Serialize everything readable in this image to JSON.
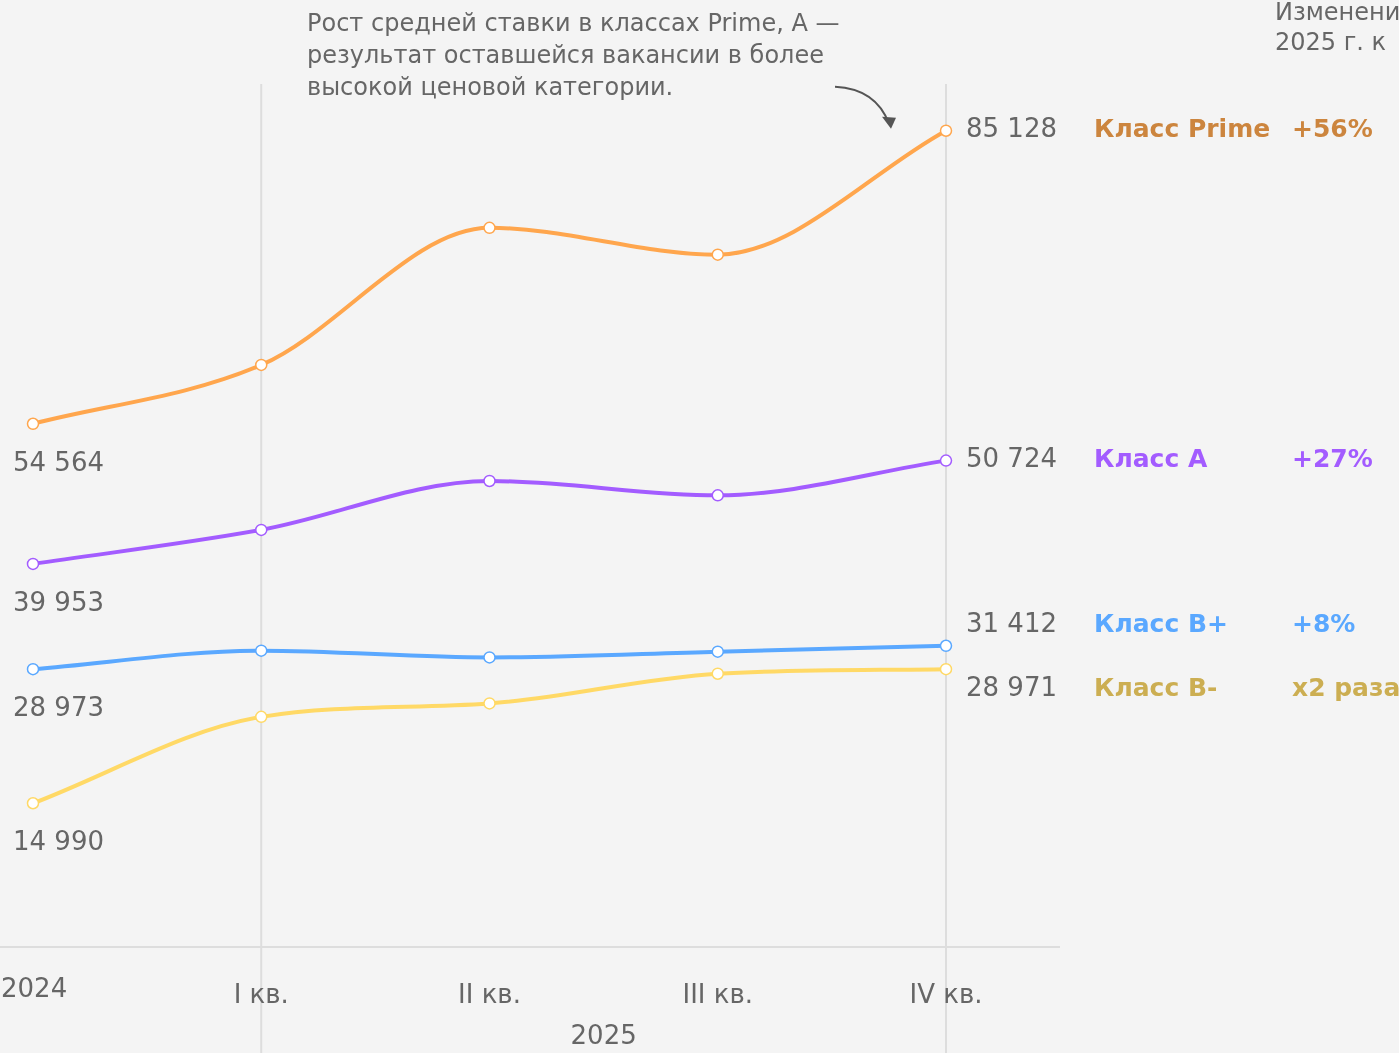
{
  "chart_data": {
    "type": "line",
    "categories": [
      "2024",
      "I кв.",
      "II кв.",
      "III кв.",
      "IV кв."
    ],
    "xlabel": "2025",
    "series": [
      {
        "name": "Класс Prime",
        "color": "#ffa64d",
        "values": [
          54564,
          60700,
          75000,
          72200,
          85128
        ],
        "value_labels": [
          "54 564",
          null,
          null,
          null,
          "85 128"
        ]
      },
      {
        "name": "Класс A",
        "color": "#a35cff",
        "values": [
          39953,
          43500,
          48600,
          47100,
          50724
        ],
        "value_labels": [
          "39 953",
          null,
          null,
          null,
          "50 724"
        ]
      },
      {
        "name": "Класс B+",
        "color": "#5aa8ff",
        "values": [
          28973,
          30900,
          30200,
          30800,
          31412
        ],
        "value_labels": [
          "28 973",
          null,
          null,
          null,
          "31 412"
        ]
      },
      {
        "name": "Класс B-",
        "color": "#ffd966",
        "values": [
          14990,
          24000,
          25400,
          28500,
          28971
        ],
        "value_labels": [
          "14 990",
          null,
          null,
          null,
          "28 971"
        ]
      }
    ],
    "ylim": [
      0,
      90000
    ],
    "ref_lines": [
      {
        "axis": "x",
        "value": "I кв.",
        "color": "#dddddd"
      },
      {
        "axis": "x",
        "value": "IV кв.",
        "color": "#dddddd"
      }
    ],
    "annotations": [
      "Рост средней ставки в классах Prime, A — результат оставшейся вакансии в более высокой ценовой категории.",
      "Изменени\n2025 г. к",
      "+56%",
      "+27%",
      "+8%",
      "x2 раза"
    ],
    "marker": "circle",
    "line_style": "solid",
    "grid": false,
    "legend": false
  }
}
